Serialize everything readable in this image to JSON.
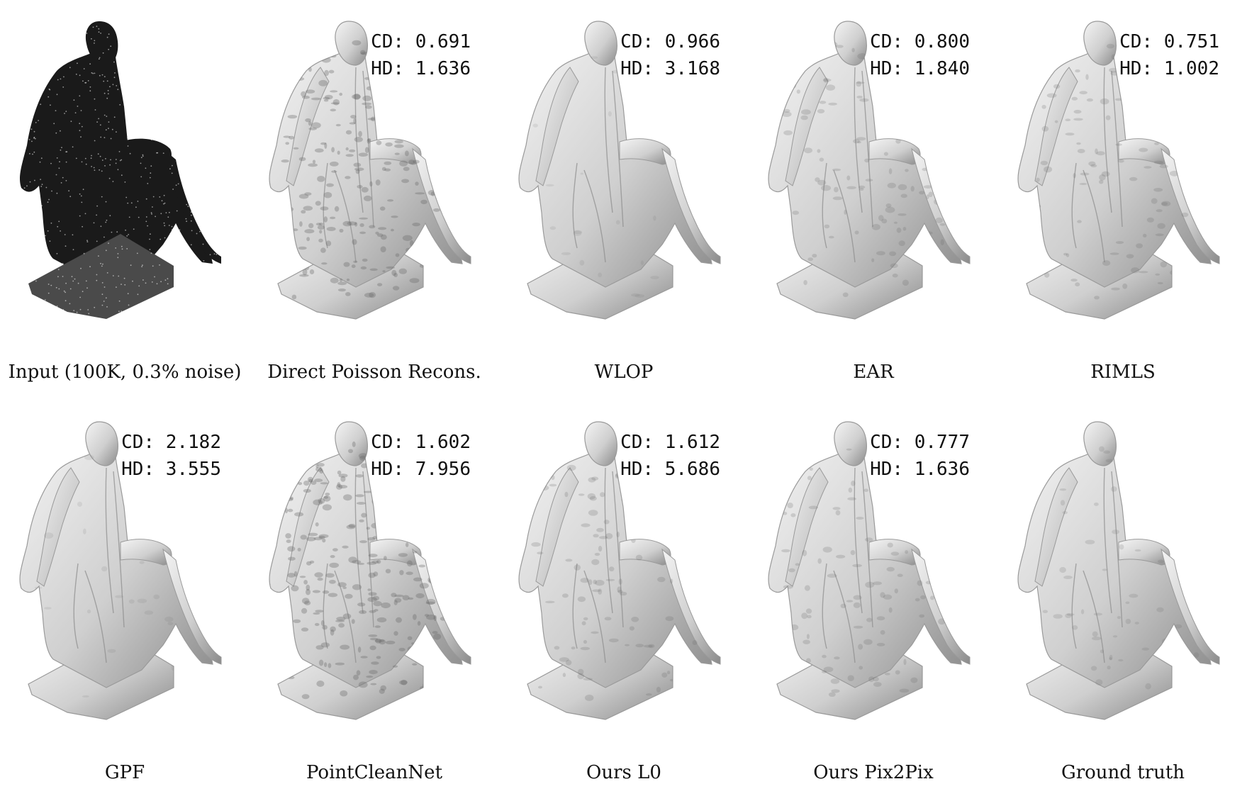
{
  "panels": [
    {
      "caption": "Input (100K, 0.3% noise)",
      "style": "pointcloud",
      "cd": "",
      "hd": ""
    },
    {
      "caption": "Direct Poisson Recons.",
      "style": "rough",
      "cd": "CD: 0.691",
      "hd": "HD: 1.636"
    },
    {
      "caption": "WLOP",
      "style": "smooth",
      "cd": "CD: 0.966",
      "hd": "HD: 3.168"
    },
    {
      "caption": "EAR",
      "style": "medium",
      "cd": "CD: 0.800",
      "hd": "HD: 1.840"
    },
    {
      "caption": "RIMLS",
      "style": "medium",
      "cd": "CD: 0.751",
      "hd": "HD: 1.002"
    },
    {
      "caption": "GPF",
      "style": "smooth",
      "cd": "CD: 2.182",
      "hd": "HD: 3.555"
    },
    {
      "caption": "PointCleanNet",
      "style": "rough",
      "cd": "CD: 1.602",
      "hd": "HD: 7.956"
    },
    {
      "caption": "Ours L0",
      "style": "medium",
      "cd": "CD: 1.612",
      "hd": "HD: 5.686"
    },
    {
      "caption": "Ours Pix2Pix",
      "style": "medium",
      "cd": "CD: 0.777",
      "hd": "HD: 1.636"
    },
    {
      "caption": "Ground truth",
      "style": "detailed",
      "cd": "",
      "hd": ""
    }
  ],
  "colors": {
    "mesh_light": "#f4f4f4",
    "mesh_mid": "#cfcfcf",
    "mesh_dark": "#8a8a8a",
    "points": "#1a1a1a"
  }
}
